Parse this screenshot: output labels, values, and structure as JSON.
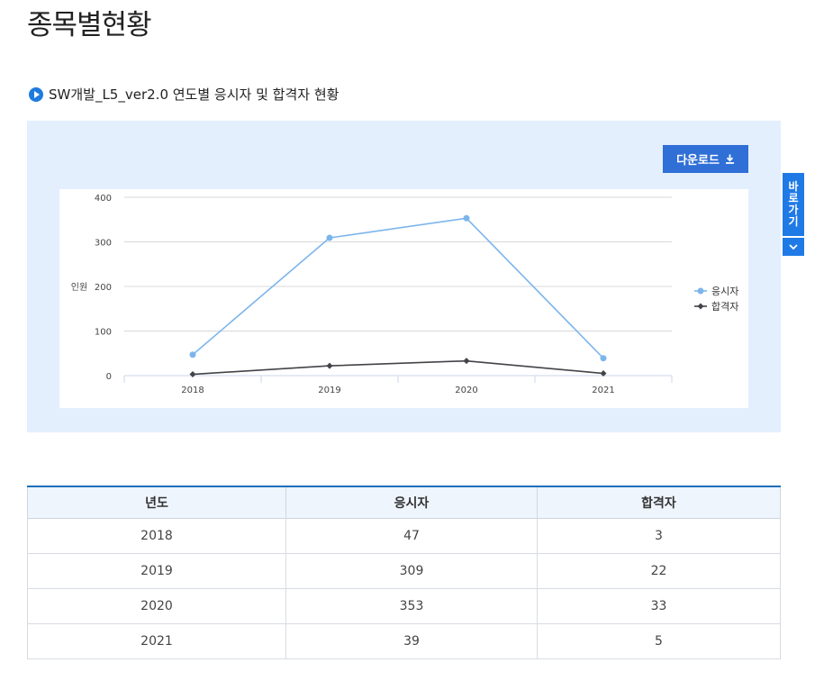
{
  "page": {
    "title": "종목별현황",
    "section_title": "SW개발_L5_ver2.0 연도별 응시자 및 합격자 현황"
  },
  "download": {
    "label": "다운로드",
    "icon": "download-icon"
  },
  "shortcut": {
    "label": [
      "바",
      "로",
      "가",
      "기"
    ],
    "icon": "chevron-down-icon"
  },
  "chart_data": {
    "type": "line",
    "categories": [
      "2018",
      "2019",
      "2020",
      "2021"
    ],
    "series": [
      {
        "name": "응시자",
        "values": [
          47,
          309,
          353,
          39
        ],
        "color": "#7cb5ec",
        "marker": "circle"
      },
      {
        "name": "합격자",
        "values": [
          3,
          22,
          33,
          5
        ],
        "color": "#434348",
        "marker": "diamond"
      }
    ],
    "ylabel": "인원",
    "yticks": [
      0,
      100,
      200,
      300,
      400
    ],
    "ylim": [
      0,
      400
    ],
    "grid": true,
    "legend": "right"
  },
  "table": {
    "headers": [
      "년도",
      "응시자",
      "합격자"
    ],
    "rows": [
      [
        "2018",
        "47",
        "3"
      ],
      [
        "2019",
        "309",
        "22"
      ],
      [
        "2020",
        "353",
        "33"
      ],
      [
        "2021",
        "39",
        "5"
      ]
    ]
  }
}
